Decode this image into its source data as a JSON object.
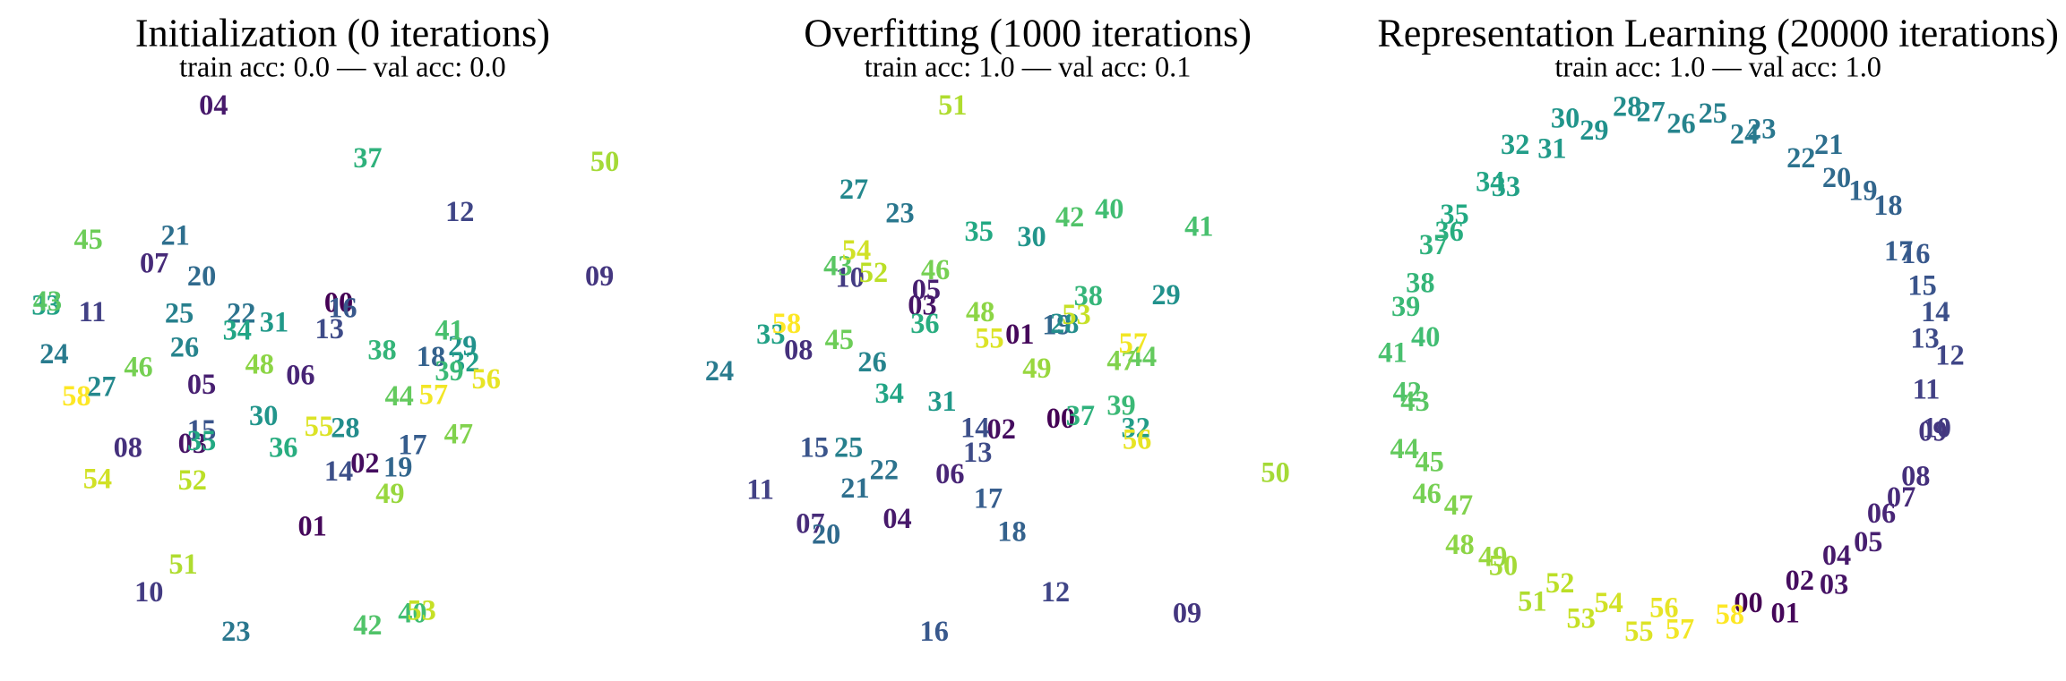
{
  "chart_data": [
    {
      "type": "scatter",
      "title": "Initialization (0 iterations)",
      "subtitle": "train acc: 0.0 — val acc: 0.0",
      "colormap": "viridis",
      "labels": [
        "00",
        "01",
        "02",
        "03",
        "04",
        "05",
        "06",
        "07",
        "08",
        "09",
        "10",
        "11",
        "12",
        "13",
        "14",
        "15",
        "16",
        "17",
        "18",
        "19",
        "20",
        "21",
        "22",
        "23",
        "24",
        "25",
        "26",
        "27",
        "28",
        "29",
        "30",
        "31",
        "32",
        "33",
        "34",
        "35",
        "36",
        "37",
        "38",
        "39",
        "40",
        "41",
        "42",
        "43",
        "44",
        "45",
        "46",
        "47",
        "48",
        "49",
        "50",
        "51",
        "52",
        "53",
        "54",
        "55",
        "56",
        "57",
        "58"
      ],
      "x": [
        257,
        237,
        277,
        146,
        162,
        153,
        228,
        117,
        97,
        455,
        113,
        70,
        349,
        250,
        257,
        153,
        260,
        313,
        327,
        302,
        153,
        133,
        183,
        179,
        41,
        136,
        140,
        77,
        262,
        351,
        200,
        208,
        353,
        35,
        180,
        153,
        215,
        279,
        290,
        341,
        313,
        341,
        279,
        36,
        303,
        67,
        105,
        348,
        197,
        296,
        459,
        139,
        146,
        320,
        74,
        242,
        369,
        329,
        58
      ],
      "y": [
        232,
        402,
        354,
        339,
        82,
        294,
        287,
        202,
        342,
        212,
        452,
        239,
        163,
        252,
        360,
        329,
        236,
        340,
        273,
        357,
        212,
        181,
        240,
        482,
        271,
        240,
        266,
        296,
        327,
        265,
        318,
        247,
        277,
        234,
        253,
        337,
        342,
        122,
        268,
        284,
        468,
        253,
        477,
        231,
        303,
        184,
        281,
        332,
        279,
        377,
        125,
        431,
        367,
        466,
        366,
        326,
        290,
        302,
        303
      ],
      "xlim": [
        0,
        520
      ],
      "ylim": [
        517,
        0
      ]
    },
    {
      "type": "scatter",
      "title": "Overfitting (1000 iterations)",
      "subtitle": "train acc: 1.0 — val acc: 0.1",
      "colormap": "viridis",
      "labels": [
        "00",
        "01",
        "02",
        "03",
        "04",
        "05",
        "06",
        "07",
        "08",
        "09",
        "10",
        "11",
        "12",
        "13",
        "14",
        "15",
        "16",
        "17",
        "18",
        "19",
        "20",
        "21",
        "22",
        "23",
        "24",
        "25",
        "26",
        "27",
        "28",
        "29",
        "30",
        "31",
        "32",
        "33",
        "34",
        "35",
        "36",
        "37",
        "38",
        "39",
        "40",
        "41",
        "42",
        "43",
        "44",
        "45",
        "46",
        "47",
        "48",
        "49",
        "50",
        "51",
        "52",
        "53",
        "54",
        "55",
        "56",
        "57",
        "58"
      ],
      "x": [
        805,
        774,
        760,
        700,
        681,
        703,
        721,
        615,
        606,
        901,
        645,
        577,
        801,
        742,
        740,
        618,
        709,
        750,
        768,
        802,
        627,
        649,
        671,
        683,
        546,
        644,
        662,
        648,
        808,
        885,
        783,
        715,
        862,
        585,
        675,
        743,
        702,
        820,
        826,
        851,
        842,
        910,
        812,
        636,
        867,
        637,
        710,
        851,
        744,
        787,
        968,
        723,
        663,
        817,
        650,
        751,
        863,
        860,
        597
      ],
      "y": [
        320,
        256,
        328,
        234,
        396,
        222,
        362,
        400,
        268,
        468,
        213,
        374,
        452,
        346,
        327,
        342,
        482,
        381,
        406,
        249,
        408,
        373,
        359,
        164,
        284,
        342,
        277,
        146,
        248,
        226,
        182,
        307,
        327,
        256,
        301,
        178,
        248,
        318,
        227,
        310,
        161,
        174,
        167,
        204,
        273,
        260,
        207,
        276,
        239,
        282,
        361,
        82,
        209,
        241,
        192,
        259,
        336,
        263,
        248
      ],
      "xlim": [
        520,
        1040
      ],
      "ylim": [
        517,
        0
      ]
    },
    {
      "type": "scatter",
      "title": "Representation Learning (20000 iterations)",
      "subtitle": "train acc: 1.0 — val acc: 1.0",
      "colormap": "viridis",
      "labels": [
        "00",
        "01",
        "02",
        "03",
        "04",
        "05",
        "06",
        "07",
        "08",
        "09",
        "10",
        "11",
        "12",
        "13",
        "14",
        "15",
        "16",
        "17",
        "18",
        "19",
        "20",
        "21",
        "22",
        "23",
        "24",
        "25",
        "26",
        "27",
        "28",
        "29",
        "30",
        "31",
        "32",
        "33",
        "34",
        "35",
        "36",
        "37",
        "38",
        "39",
        "40",
        "41",
        "42",
        "43",
        "44",
        "45",
        "46",
        "47",
        "48",
        "49",
        "50",
        "51",
        "52",
        "53",
        "54",
        "55",
        "56",
        "57",
        "58"
      ],
      "x": [
        1327,
        1355,
        1366,
        1392,
        1394,
        1418,
        1428,
        1443,
        1454,
        1467,
        1470,
        1462,
        1480,
        1461,
        1469,
        1459,
        1454,
        1441,
        1433,
        1414,
        1394,
        1388,
        1367,
        1337,
        1324,
        1300,
        1276,
        1253,
        1235,
        1210,
        1188,
        1178,
        1150,
        1143,
        1131,
        1104,
        1100,
        1088,
        1078,
        1067,
        1082,
        1057,
        1068,
        1074,
        1066,
        1085,
        1083,
        1107,
        1108,
        1133,
        1141,
        1163,
        1184,
        1200,
        1221,
        1244,
        1263,
        1275,
        1313
      ],
      "y": [
        460,
        468,
        443,
        446,
        424,
        414,
        392,
        380,
        364,
        330,
        327,
        298,
        272,
        259,
        239,
        219,
        195,
        193,
        158,
        147,
        137,
        112,
        122,
        100,
        104,
        88,
        96,
        87,
        83,
        101,
        92,
        115,
        112,
        144,
        140,
        165,
        178,
        188,
        217,
        235,
        258,
        270,
        300,
        307,
        343,
        353,
        377,
        386,
        416,
        425,
        432,
        459,
        445,
        472,
        460,
        482,
        464,
        480,
        469
      ],
      "xlim": [
        1040,
        1568
      ],
      "ylim": [
        517,
        0
      ]
    }
  ]
}
